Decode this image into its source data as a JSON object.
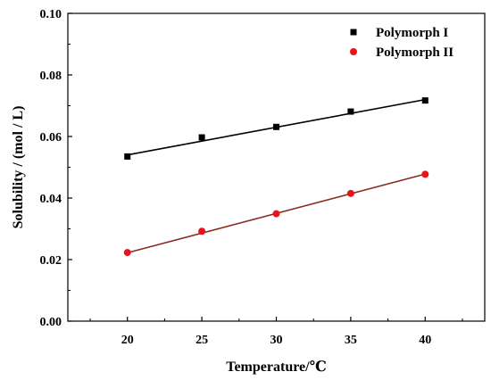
{
  "chart_data": {
    "type": "scatter",
    "title": "",
    "xlabel": "Temperature/℃",
    "ylabel": "Solubility / (mol / L)",
    "xlim": [
      16,
      44
    ],
    "ylim": [
      0.0,
      0.1
    ],
    "x_ticks": [
      20,
      25,
      30,
      35,
      40
    ],
    "y_ticks": [
      0.0,
      0.02,
      0.04,
      0.06,
      0.08,
      0.1
    ],
    "x_tick_labels": [
      "20",
      "25",
      "30",
      "35",
      "40"
    ],
    "y_tick_labels": [
      "0.00",
      "0.02",
      "0.04",
      "0.06",
      "0.08",
      "0.10"
    ],
    "grid": false,
    "legend_position": "top-right",
    "series": [
      {
        "name": "Polymorph I",
        "marker": "square",
        "marker_color": "#000000",
        "fit_line_color": "#000000",
        "x": [
          20,
          25,
          30,
          35,
          40
        ],
        "y": [
          0.0535,
          0.0597,
          0.0631,
          0.0681,
          0.0717
        ],
        "fit": [
          0.054,
          0.072
        ]
      },
      {
        "name": "Polymorph II",
        "marker": "circle",
        "marker_color": "#e8141c",
        "fit_line_color": "#8b2a1e",
        "x": [
          20,
          25,
          30,
          35,
          40
        ],
        "y": [
          0.0223,
          0.0292,
          0.0349,
          0.0415,
          0.0477
        ],
        "fit": [
          0.0222,
          0.0478
        ]
      }
    ]
  }
}
